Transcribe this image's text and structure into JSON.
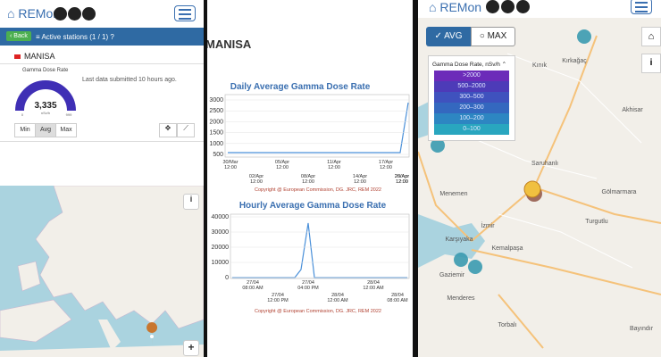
{
  "left": {
    "brand": "REMon",
    "back": "Back",
    "station_count": "Active stations (1 / 1)",
    "station": "MANISA",
    "gauge": {
      "title": "Gamma Dose Rate",
      "value": "3,335",
      "unit": "nSv/h",
      "min": "0",
      "max": "999"
    },
    "last_data": "Last data submitted 10 hours ago.",
    "buttons": [
      "Min",
      "Avg",
      "Max"
    ],
    "zoom_in": "+",
    "info": "i"
  },
  "middle": {
    "station": "MANISA",
    "daily": {
      "title": "Daily Average Gamma Dose Rate",
      "yticks": [
        "3000",
        "2500",
        "2000",
        "1500",
        "1000",
        "500"
      ],
      "xlabels_top": [
        "30/Mar",
        "05/Apr",
        "11/Apr",
        "17/Apr",
        "23/Apr"
      ],
      "xlabels_bottom": [
        "02/Apr",
        "08/Apr",
        "14/Apr",
        "20/Apr",
        "26/Apr"
      ],
      "time": "12:00",
      "copyright": "Copyright @ European Commission, DG. JRC, REM 2022"
    },
    "hourly": {
      "title": "Hourly Average Gamma Dose Rate",
      "yticks": [
        "40000",
        "30000",
        "20000",
        "10000",
        "0"
      ],
      "xlabels_top": [
        "27/04",
        "27/04",
        "28/04"
      ],
      "xtimes_top": [
        "08:00 AM",
        "04:00 PM",
        "12:00 AM"
      ],
      "xlabels_bottom": [
        "27/04",
        "28/04",
        "28/04"
      ],
      "xtimes_bottom": [
        "12:00 PM",
        "12:00 AM",
        "08:00 AM"
      ],
      "copyright": "Copyright @ European Commission, DG. JRC, REM 2022"
    }
  },
  "right": {
    "brand": "REMon",
    "avg": "AVG",
    "max": "MAX",
    "legend_title": "Gamma Dose Rate, nSv/h",
    "legend": [
      ">2000",
      "500–2000",
      "300–500",
      "200–300",
      "100–200",
      "0–100"
    ],
    "places": [
      "Kırkağaç",
      "Kınık",
      "Akhisar",
      "Saruhanlı",
      "Gölmarmara",
      "Menemen",
      "Karşıyaka",
      "İzmir",
      "Gaziemir",
      "Kemalpaşa",
      "Turgutlu",
      "Menderes",
      "Bayındır",
      "Torbalı"
    ],
    "info": "i"
  }
}
